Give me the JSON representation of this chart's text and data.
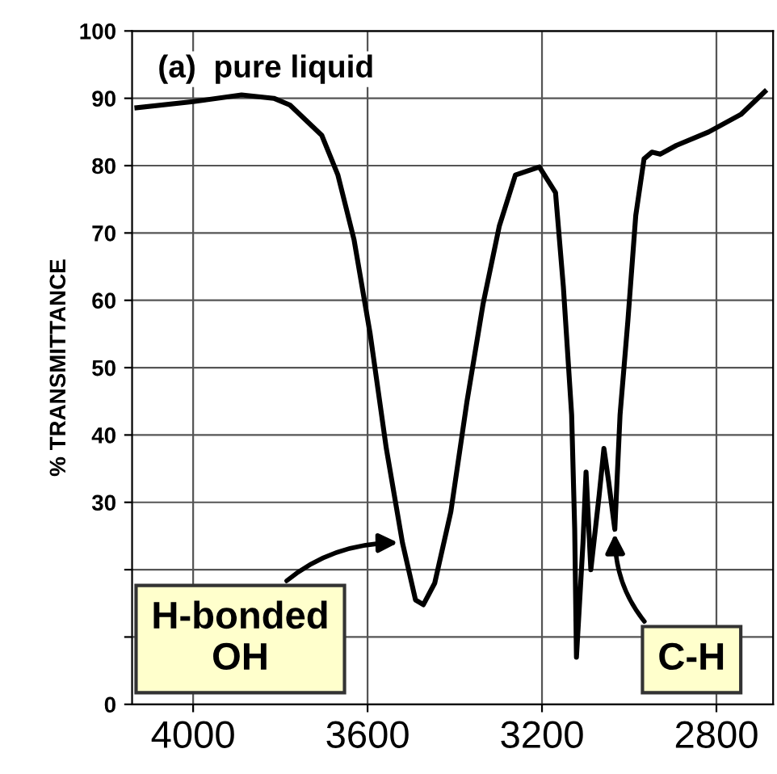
{
  "chart_data": {
    "type": "line",
    "ylabel": "% TRANSMITTANCE",
    "x": [
      4129,
      4000,
      3889,
      3815,
      3778,
      3705,
      3668,
      3631,
      3594,
      3557,
      3520,
      3490,
      3472,
      3446,
      3409,
      3372,
      3335,
      3298,
      3261,
      3206,
      3169,
      3151,
      3132,
      3125,
      3121,
      3106,
      3099,
      3088,
      3069,
      3058,
      3047,
      3033,
      3021,
      3003,
      2985,
      2966,
      2948,
      2929,
      2892,
      2818,
      2744,
      2689
    ],
    "series": [
      {
        "color": "#000000",
        "values": [
          88.6,
          89.5,
          90.5,
          90,
          89,
          84.5,
          78.6,
          69,
          55,
          38,
          24,
          15.5,
          14.8,
          18,
          28.6,
          45,
          59.5,
          71,
          78.6,
          79.8,
          76,
          62,
          43,
          26,
          7,
          24,
          34.5,
          20,
          31,
          38,
          33,
          26,
          43,
          57,
          72.6,
          81,
          82,
          81.7,
          83,
          85,
          87.6,
          91
        ]
      }
    ],
    "xlim": [
      4140,
      2670
    ],
    "ylim": [
      0,
      100
    ],
    "xticks": [
      4000,
      3600,
      3200,
      2800
    ],
    "yticks": [
      0,
      {
        "value": 10,
        "label": null
      },
      {
        "value": 20,
        "label": null
      },
      30,
      40,
      50,
      60,
      70,
      80,
      90,
      100
    ],
    "grid": true,
    "marker": "none",
    "line_style": "solid",
    "annotations": [
      "(a)  pure liquid",
      {
        "text": "H-bonded\nOH",
        "x": 3520,
        "y": 24
      },
      {
        "text": "C-H",
        "x": 3033,
        "y": 26
      }
    ]
  }
}
